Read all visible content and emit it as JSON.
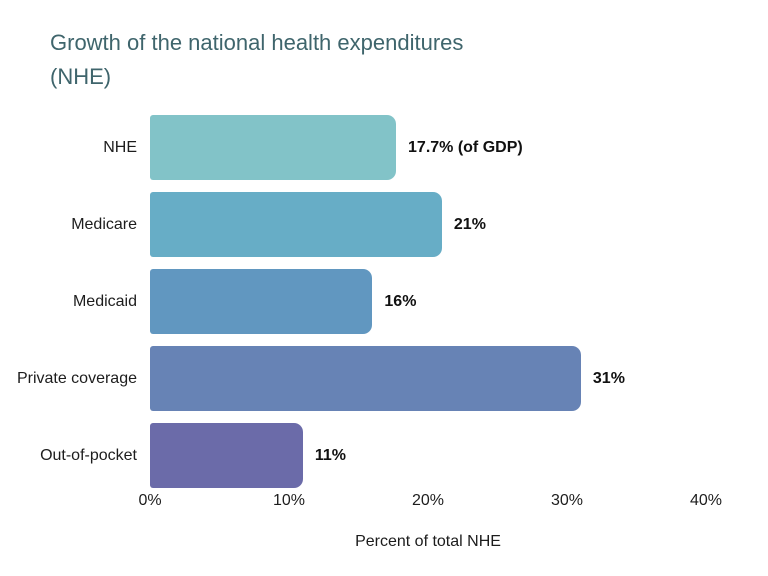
{
  "chart_data": {
    "type": "bar",
    "orientation": "horizontal",
    "title": "Growth of the national health expenditures (NHE)",
    "title_lines": {
      "line1": "Growth of the national health expenditures",
      "line2": "(NHE)"
    },
    "title_color": "#3f656c",
    "categories": [
      "NHE",
      "Medicare",
      "Medicaid",
      "Private coverage",
      "Out-of-pocket"
    ],
    "values": [
      17.7,
      21,
      16,
      31,
      11
    ],
    "value_labels": [
      "17.7% (of GDP)",
      "21%",
      "16%",
      "31%",
      "11%"
    ],
    "bar_colors": [
      "#82c3c8",
      "#67adc6",
      "#6197c0",
      "#6783b5",
      "#6b6ba9"
    ],
    "xlabel": "Percent of total NHE",
    "x_ticks": [
      "0%",
      "10%",
      "20%",
      "30%",
      "40%"
    ],
    "x_tick_values": [
      0,
      10,
      20,
      30,
      40
    ],
    "xlim": [
      0,
      40
    ],
    "grid": false,
    "legend": "none",
    "background": "#ffffff"
  }
}
